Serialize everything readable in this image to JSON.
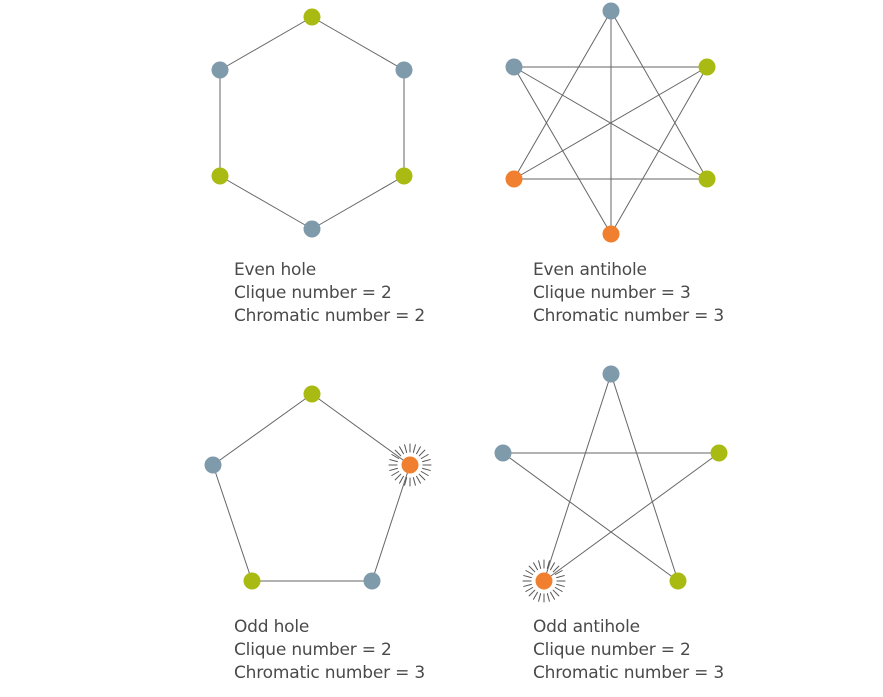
{
  "colors": {
    "edge": "#666666",
    "blue": "#7f9aab",
    "green": "#a9bb12",
    "orange": "#f0802f",
    "highlight_rays": "#555555"
  },
  "graphs": {
    "even_hole": {
      "name": "Even hole",
      "clique": "Clique number = 2",
      "chromatic": "Chromatic number = 2",
      "vertex_colors": [
        "green",
        "blue",
        "green",
        "blue",
        "green",
        "blue"
      ],
      "highlighted": []
    },
    "even_antihole": {
      "name": "Even antihole",
      "clique": "Clique number = 3",
      "chromatic": "Chromatic number = 3",
      "vertex_colors": [
        "blue",
        "green",
        "green",
        "orange",
        "orange",
        "blue"
      ],
      "highlighted": []
    },
    "odd_hole": {
      "name": "Odd hole",
      "clique": "Clique number = 2",
      "chromatic": "Chromatic number = 3",
      "vertex_colors": [
        "green",
        "orange",
        "blue",
        "green",
        "blue"
      ],
      "highlighted": [
        1
      ]
    },
    "odd_antihole": {
      "name": "Odd antihole",
      "clique": "Clique number = 2",
      "chromatic": "Chromatic number = 3",
      "vertex_colors": [
        "blue",
        "green",
        "green",
        "orange",
        "blue"
      ],
      "highlighted": [
        3
      ]
    }
  }
}
